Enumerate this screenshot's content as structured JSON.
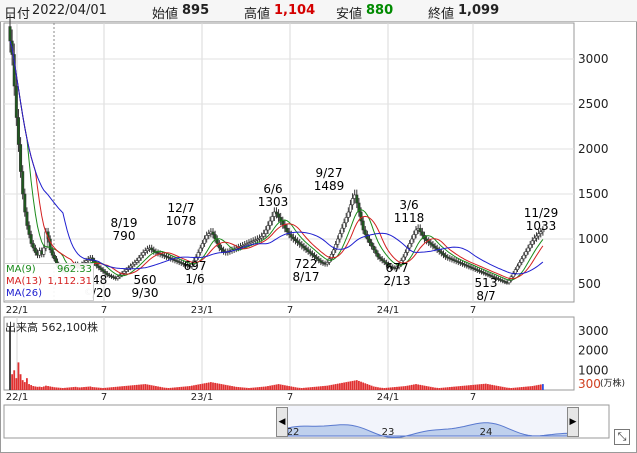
{
  "header": {
    "date_label": "日付",
    "date_value": "2022/04/01",
    "open_label": "始値",
    "open_value": "895",
    "high_label": "高値",
    "high_value": "1,104",
    "low_label": "安値",
    "low_value": "880",
    "close_label": "終値",
    "close_value": "1,099"
  },
  "legend": [
    {
      "name": "MA(9)",
      "value": "962.33",
      "color": "#1a8a1a"
    },
    {
      "name": "MA(13)",
      "value": "1,112.31",
      "color": "#d42020"
    },
    {
      "name": "MA(26)",
      "value": "",
      "color": "#2020d0"
    }
  ],
  "volume": {
    "label": "出来高",
    "value": "562,100株",
    "axis_ticks": [
      "3000",
      "2000",
      "1000",
      "300"
    ],
    "unit": "(万株)"
  },
  "navigator": {
    "left_arrow": "◀",
    "right_arrow": "▶",
    "labels": [
      "22",
      "23",
      "24"
    ],
    "expand_icon": "⤡"
  },
  "colors": {
    "up_candle": "#808080",
    "down_candle": "#1e5a1e",
    "volume_bar": "#e03030",
    "volume_tail": "#3050e0"
  },
  "chart_data": [
    {
      "type": "candlestick",
      "x_tick_labels": [
        "22/1",
        "7",
        "23/1",
        "7",
        "24/1",
        "7"
      ],
      "y_ticks": [
        500,
        1000,
        1500,
        2000,
        2500,
        3000
      ],
      "ylim": [
        300,
        3400
      ],
      "annotations": [
        {
          "date": "8/19",
          "value": 790
        },
        {
          "date": "12/7",
          "value": 1078
        },
        {
          "date": "6/6",
          "value": 1303
        },
        {
          "date": "9/27",
          "value": 1489
        },
        {
          "date": "3/6",
          "value": 1118
        },
        {
          "date": "11/29",
          "value": 1033
        },
        {
          "date": "9/30",
          "value": 560
        },
        {
          "date": "1/6",
          "value": 697
        },
        {
          "date": "8/17",
          "value": 722
        },
        {
          "date": "2/13",
          "value": 677
        },
        {
          "date": "8/7",
          "value": 513
        }
      ],
      "partial_labels": [
        "48",
        "/20"
      ],
      "close_series": [
        3200,
        3050,
        2700,
        2350,
        2050,
        1750,
        1500,
        1300,
        1150,
        1050,
        950,
        900,
        850,
        820,
        870,
        830,
        900,
        1080,
        1000,
        880,
        820,
        780,
        720,
        700,
        680,
        650,
        640,
        660,
        680,
        700,
        710,
        720,
        690,
        700,
        720,
        740,
        760,
        780,
        790,
        760,
        730,
        700,
        680,
        660,
        640,
        620,
        600,
        590,
        580,
        570,
        560,
        580,
        600,
        620,
        640,
        660,
        680,
        700,
        720,
        740,
        760,
        790,
        820,
        850,
        870,
        890,
        900,
        880,
        860,
        850,
        840,
        830,
        820,
        810,
        800,
        790,
        780,
        770,
        760,
        750,
        740,
        730,
        720,
        710,
        700,
        697,
        720,
        760,
        800,
        850,
        900,
        950,
        1000,
        1040,
        1060,
        1078,
        1050,
        1000,
        950,
        900,
        880,
        860,
        850,
        860,
        870,
        880,
        890,
        900,
        910,
        920,
        930,
        940,
        950,
        960,
        970,
        980,
        990,
        1000,
        1010,
        1030,
        1060,
        1100,
        1150,
        1200,
        1250,
        1300,
        1280,
        1240,
        1200,
        1160,
        1120,
        1080,
        1050,
        1020,
        1000,
        980,
        960,
        940,
        920,
        900,
        880,
        860,
        840,
        820,
        800,
        780,
        760,
        740,
        730,
        722,
        740,
        780,
        830,
        880,
        940,
        1000,
        1060,
        1120,
        1180,
        1240,
        1300,
        1380,
        1450,
        1489,
        1400,
        1300,
        1200,
        1100,
        1050,
        1000,
        960,
        920,
        880,
        840,
        800,
        780,
        760,
        740,
        720,
        700,
        690,
        680,
        677,
        690,
        720,
        760,
        800,
        850,
        900,
        950,
        1000,
        1050,
        1100,
        1118,
        1080,
        1040,
        1000,
        980,
        960,
        940,
        920,
        900,
        880,
        860,
        840,
        820,
        800,
        790,
        780,
        770,
        760,
        750,
        740,
        730,
        720,
        710,
        700,
        690,
        680,
        670,
        660,
        650,
        640,
        630,
        620,
        610,
        600,
        590,
        580,
        570,
        560,
        550,
        540,
        530,
        520,
        513,
        540,
        580,
        620,
        660,
        700,
        740,
        780,
        820,
        860,
        900,
        940,
        980,
        1010,
        1033,
        1060,
        1080,
        1099
      ],
      "volume_series": [
        3200,
        800,
        1000,
        600,
        1400,
        800,
        500,
        400,
        600,
        300,
        250,
        200,
        180,
        160,
        170,
        150,
        180,
        220,
        200,
        180,
        160,
        140,
        130,
        120,
        110,
        100,
        110,
        120,
        130,
        140,
        150,
        160,
        140,
        130,
        140,
        150,
        160,
        170,
        180,
        150,
        140,
        130,
        120,
        110,
        100,
        110,
        120,
        130,
        140,
        150,
        160,
        170,
        180,
        190,
        200,
        210,
        220,
        230,
        240,
        250,
        260,
        270,
        280,
        290,
        300,
        280,
        260,
        240,
        220,
        200,
        180,
        160,
        140,
        120,
        110,
        100,
        110,
        120,
        130,
        140,
        150,
        160,
        170,
        180,
        190,
        200,
        220,
        240,
        260,
        280,
        300,
        320,
        340,
        360,
        380,
        400,
        380,
        360,
        340,
        320,
        300,
        280,
        260,
        240,
        220,
        200,
        180,
        160,
        150,
        140,
        130,
        120,
        110,
        100,
        110,
        120,
        130,
        140,
        150,
        160,
        170,
        180,
        200,
        220,
        240,
        260,
        280,
        300,
        280,
        260,
        240,
        220,
        200,
        180,
        160,
        140,
        120,
        110,
        100,
        110,
        120,
        130,
        140,
        150,
        160,
        170,
        180,
        190,
        200,
        210,
        220,
        240,
        260,
        280,
        300,
        320,
        340,
        360,
        380,
        400,
        420,
        440,
        460,
        480,
        500,
        460,
        420,
        380,
        340,
        300,
        260,
        220,
        180,
        160,
        140,
        120,
        110,
        100,
        110,
        120,
        130,
        140,
        150,
        160,
        170,
        180,
        190,
        200,
        220,
        240,
        260,
        280,
        300,
        280,
        260,
        240,
        220,
        200,
        180,
        160,
        140,
        120,
        110,
        100,
        110,
        120,
        130,
        140,
        150,
        160,
        170,
        180,
        190,
        200,
        210,
        220,
        230,
        240,
        250,
        260,
        270,
        280,
        290,
        300,
        310,
        320,
        300,
        280,
        260,
        240,
        220,
        200,
        180,
        160,
        140,
        120,
        110,
        100,
        110,
        120,
        130,
        140,
        150,
        160,
        170,
        180,
        190,
        200,
        220,
        240,
        260,
        280,
        300
      ]
    }
  ]
}
